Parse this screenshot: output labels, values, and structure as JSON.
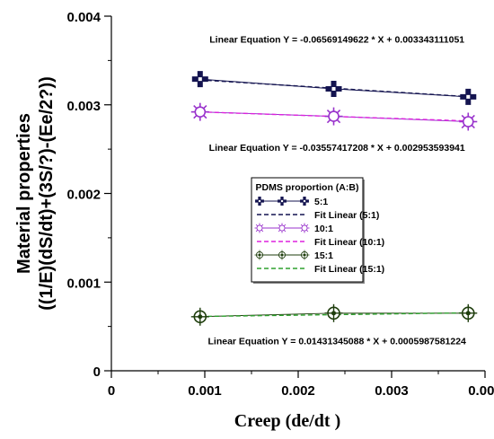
{
  "chart_data": {
    "type": "scatter",
    "xlabel": "Creep (de/dt )",
    "ylabel_lines": [
      "Material properties",
      "((1/E)(dS/dt)+(3S/?)-(Ee/2?))"
    ],
    "xlim": [
      0,
      0.004
    ],
    "ylim": [
      0,
      0.004
    ],
    "x_ticks": [
      "0",
      "0.001",
      "0.002",
      "0.003",
      "0.004"
    ],
    "y_ticks": [
      "0",
      "0.001",
      "0.002",
      "0.003",
      "0.004"
    ],
    "grid": false,
    "legend": {
      "title": "PDMS proportion (A:B)",
      "placement": "center-right",
      "entries": [
        "5:1",
        "Fit Linear (5:1)",
        "10:1",
        "Fit Linear (10:1)",
        "15:1",
        "Fit Linear (15:1)"
      ]
    },
    "series": [
      {
        "name": "5:1",
        "marker": "cross-square",
        "color": "#141450",
        "x": [
          0.00095,
          0.00238,
          0.00382
        ],
        "y": [
          0.00329,
          0.00318,
          0.00309
        ],
        "fit": {
          "label": "Fit Linear (5:1)",
          "slope": -0.06569149622,
          "intercept": 0.003343111051,
          "color": "#141450"
        }
      },
      {
        "name": "10:1",
        "marker": "star-burst",
        "color": "#9933cc",
        "x": [
          0.00095,
          0.00238,
          0.00382
        ],
        "y": [
          0.00292,
          0.00287,
          0.00281
        ],
        "fit": {
          "label": "Fit Linear (10:1)",
          "slope": -0.03557417208,
          "intercept": 0.002953593941,
          "color": "#dd22dd"
        }
      },
      {
        "name": "15:1",
        "marker": "crosshair-circle",
        "color": "#1e3d0c",
        "x": [
          0.00095,
          0.00238,
          0.00382
        ],
        "y": [
          0.00061,
          0.00065,
          0.00065
        ],
        "fit": {
          "label": "Fit Linear (15:1)",
          "slope": 0.01431345088,
          "intercept": 0.0005987581224,
          "color": "#2ea02e"
        }
      }
    ],
    "annotations": [
      {
        "text": "Linear Equation Y = -0.06569149622 * X + 0.003343111051",
        "x": 0.0023,
        "y": 0.0037
      },
      {
        "text": "Linear Equation Y = -0.03557417208 * X + 0.002953593941",
        "x": 0.0023,
        "y": 0.00248
      },
      {
        "text": "Linear Equation Y = 0.01431345088 * X + 0.0005987581224",
        "x": 0.0023,
        "y": 0.0003
      }
    ]
  }
}
